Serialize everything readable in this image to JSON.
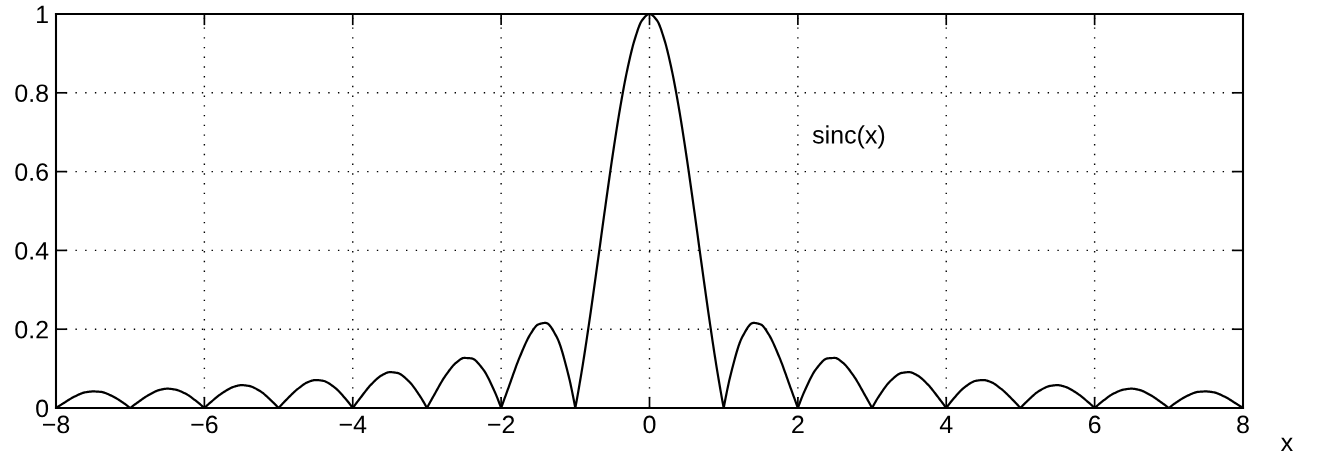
{
  "chart_data": {
    "type": "line",
    "x": [
      -8,
      -7.9,
      -7.75,
      -7.6,
      -7.5,
      -7.4,
      -7.25,
      -7.1,
      -7,
      -6.9,
      -6.75,
      -6.6,
      -6.5,
      -6.4,
      -6.25,
      -6.1,
      -6,
      -5.9,
      -5.75,
      -5.6,
      -5.5,
      -5.4,
      -5.25,
      -5.1,
      -5,
      -4.9,
      -4.75,
      -4.6,
      -4.5,
      -4.4,
      -4.25,
      -4.1,
      -4,
      -3.9,
      -3.75,
      -3.6,
      -3.5,
      -3.4,
      -3.25,
      -3.1,
      -3,
      -2.9,
      -2.75,
      -2.6,
      -2.5,
      -2.4,
      -2.25,
      -2.1,
      -2,
      -1.9,
      -1.75,
      -1.6,
      -1.5,
      -1.4,
      -1.25,
      -1.1,
      -1,
      -0.9,
      -0.8,
      -0.7,
      -0.6,
      -0.5,
      -0.4,
      -0.3,
      -0.2,
      -0.1,
      0,
      0.1,
      0.2,
      0.3,
      0.4,
      0.5,
      0.6,
      0.7,
      0.8,
      0.9,
      1,
      1.1,
      1.25,
      1.4,
      1.5,
      1.6,
      1.75,
      1.9,
      2,
      2.1,
      2.25,
      2.4,
      2.5,
      2.6,
      2.75,
      2.9,
      3,
      3.1,
      3.25,
      3.4,
      3.5,
      3.6,
      3.75,
      3.9,
      4,
      4.1,
      4.25,
      4.4,
      4.5,
      4.6,
      4.75,
      4.9,
      5,
      5.1,
      5.25,
      5.4,
      5.5,
      5.6,
      5.75,
      5.9,
      6,
      6.1,
      6.25,
      6.4,
      6.5,
      6.6,
      6.75,
      6.9,
      7,
      7.1,
      7.25,
      7.4,
      7.5,
      7.6,
      7.75,
      7.9,
      8
    ],
    "series": [
      {
        "color": "#000000",
        "values": [
          0,
          0.012,
          0.029,
          0.04,
          0.042,
          0.041,
          0.031,
          0.014,
          0,
          0.014,
          0.033,
          0.046,
          0.049,
          0.047,
          0.036,
          0.016,
          0,
          0.017,
          0.039,
          0.054,
          0.058,
          0.056,
          0.043,
          0.019,
          0,
          0.02,
          0.047,
          0.066,
          0.071,
          0.069,
          0.053,
          0.024,
          0,
          0.025,
          0.06,
          0.084,
          0.091,
          0.089,
          0.069,
          0.032,
          0,
          0.034,
          0.082,
          0.116,
          0.127,
          0.126,
          0.1,
          0.047,
          0,
          0.052,
          0.129,
          0.189,
          0.212,
          0.216,
          0.18,
          0.089,
          0,
          0.109,
          0.234,
          0.368,
          0.505,
          0.637,
          0.757,
          0.858,
          0.935,
          0.984,
          1,
          0.984,
          0.935,
          0.858,
          0.757,
          0.637,
          0.505,
          0.368,
          0.234,
          0.109,
          0,
          0.089,
          0.18,
          0.216,
          0.212,
          0.189,
          0.129,
          0.052,
          0,
          0.047,
          0.1,
          0.126,
          0.127,
          0.116,
          0.082,
          0.034,
          0,
          0.032,
          0.069,
          0.089,
          0.091,
          0.084,
          0.06,
          0.025,
          0,
          0.024,
          0.053,
          0.069,
          0.071,
          0.066,
          0.047,
          0.02,
          0,
          0.019,
          0.043,
          0.056,
          0.058,
          0.054,
          0.039,
          0.017,
          0,
          0.016,
          0.036,
          0.047,
          0.049,
          0.046,
          0.033,
          0.014,
          0,
          0.014,
          0.031,
          0.041,
          0.042,
          0.04,
          0.029,
          0.012,
          0
        ]
      }
    ],
    "xlabel": "x",
    "annotations": [
      "sinc(x)"
    ],
    "xlim": [
      -8,
      8
    ],
    "ylim": [
      0,
      1
    ],
    "xticks": [
      -8,
      -6,
      -4,
      -2,
      0,
      2,
      4,
      6,
      8
    ],
    "yticks": [
      0,
      0.2,
      0.4,
      0.6,
      0.8,
      1
    ],
    "grid": true,
    "marker": "none",
    "line_style": "solid"
  }
}
